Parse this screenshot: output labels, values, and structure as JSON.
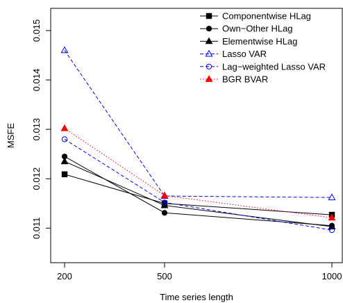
{
  "chart_data": {
    "type": "line",
    "title": "",
    "xlabel": "Time series length",
    "ylabel": "MSFE",
    "x": [
      200,
      500,
      1000
    ],
    "x_tick_labels": [
      "200",
      "500",
      "1000"
    ],
    "y_ticks": [
      0.011,
      0.012,
      0.013,
      0.014,
      0.015
    ],
    "y_tick_labels": [
      "0.011",
      "0.012",
      "0.013",
      "0.014",
      "0.015"
    ],
    "ylim": [
      0.0103,
      0.01545
    ],
    "grid": false,
    "legend_position": "top-right",
    "series": [
      {
        "name": "Componentwise HLag",
        "values": [
          0.01209,
          0.0115,
          0.01127
        ],
        "color": "#000000",
        "dash": "solid",
        "marker": "square-filled"
      },
      {
        "name": "Own−Other HLag",
        "values": [
          0.01245,
          0.01131,
          0.01105
        ],
        "color": "#000000",
        "dash": "solid",
        "marker": "circle-filled"
      },
      {
        "name": "Elementwise HLag",
        "values": [
          0.01235,
          0.01146,
          0.01103
        ],
        "color": "#000000",
        "dash": "solid",
        "marker": "triangle-filled"
      },
      {
        "name": "Lasso VAR",
        "values": [
          0.0146,
          0.01165,
          0.01162
        ],
        "color": "#0000ff",
        "dash": "dashed",
        "marker": "triangle-open"
      },
      {
        "name": "Lag−weighted Lasso VAR",
        "values": [
          0.0128,
          0.01152,
          0.01096
        ],
        "color": "#0000ff",
        "dash": "dashed",
        "marker": "circle-open"
      },
      {
        "name": "BGR BVAR",
        "values": [
          0.01302,
          0.01166,
          0.01121
        ],
        "color": "#ff0000",
        "dash": "dotted",
        "marker": "triangle-filled"
      }
    ]
  }
}
